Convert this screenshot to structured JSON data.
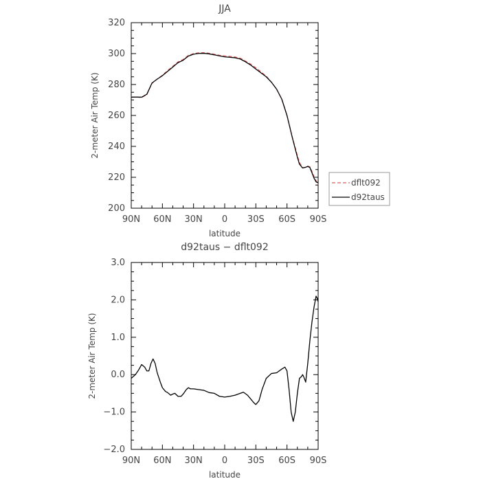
{
  "chart_data": [
    {
      "type": "line",
      "title": "JJA",
      "xlabel": "latitude",
      "ylabel": "2-meter Air Temp (K)",
      "xlim": [
        90,
        -90
      ],
      "ylim": [
        200,
        320
      ],
      "x_ticks": [
        90,
        60,
        30,
        0,
        -30,
        -60,
        -90
      ],
      "x_tick_labels": [
        "90N",
        "60N",
        "30N",
        "0",
        "30S",
        "60S",
        "90S"
      ],
      "y_ticks": [
        200,
        220,
        240,
        260,
        280,
        300,
        320
      ],
      "y_tick_labels": [
        "200",
        "220",
        "240",
        "260",
        "280",
        "300",
        "320"
      ],
      "legend_position": "right",
      "series": [
        {
          "name": "dflt092",
          "color": "#e05a5a",
          "dashed": true,
          "x": [
            90,
            85,
            80,
            75,
            70,
            65,
            60,
            55,
            50,
            45,
            40,
            35,
            30,
            25,
            20,
            15,
            10,
            5,
            0,
            -5,
            -10,
            -15,
            -20,
            -25,
            -30,
            -35,
            -40,
            -45,
            -50,
            -55,
            -60,
            -65,
            -70,
            -72,
            -75,
            -78,
            -80,
            -82,
            -84,
            -86,
            -88,
            -90
          ],
          "y": [
            271.9,
            271.9,
            271.6,
            273.5,
            280.8,
            283.5,
            286.0,
            289.0,
            291.8,
            294.6,
            296.2,
            298.8,
            300.0,
            300.5,
            300.6,
            300.2,
            299.6,
            298.9,
            298.5,
            298.2,
            297.8,
            297.0,
            295.2,
            293.2,
            290.8,
            288.2,
            285.4,
            281.5,
            277.0,
            270.5,
            259.8,
            246.3,
            234.0,
            229.6,
            226.2,
            226.3,
            227.2,
            226.8,
            223.8,
            220.5,
            217.8,
            215.3
          ]
        },
        {
          "name": "d92taus",
          "color": "#000000",
          "dashed": false,
          "x": [
            90,
            85,
            80,
            75,
            70,
            65,
            60,
            55,
            50,
            45,
            40,
            35,
            30,
            25,
            20,
            15,
            10,
            5,
            0,
            -5,
            -10,
            -15,
            -20,
            -25,
            -30,
            -35,
            -40,
            -45,
            -50,
            -55,
            -60,
            -65,
            -70,
            -72,
            -75,
            -78,
            -80,
            -82,
            -84,
            -86,
            -88,
            -90
          ],
          "y": [
            271.8,
            271.9,
            271.8,
            273.7,
            281.0,
            283.5,
            285.7,
            288.5,
            291.3,
            294.1,
            295.7,
            298.4,
            299.6,
            300.1,
            300.2,
            299.8,
            299.2,
            298.5,
            297.9,
            297.6,
            297.3,
            296.5,
            294.7,
            292.6,
            290.0,
            287.5,
            285.0,
            281.5,
            277.0,
            270.5,
            260.0,
            246.0,
            233.0,
            228.5,
            226.0,
            226.5,
            227.0,
            226.4,
            223.0,
            219.5,
            217.0,
            216.5
          ]
        }
      ]
    },
    {
      "type": "line",
      "title": "d92taus − dflt092",
      "xlabel": "latitude",
      "ylabel": "2-meter Air Temp (K)",
      "xlim": [
        90,
        -90
      ],
      "ylim": [
        -2.0,
        3.0
      ],
      "x_ticks": [
        90,
        60,
        30,
        0,
        -30,
        -60,
        -90
      ],
      "x_tick_labels": [
        "90N",
        "60N",
        "30N",
        "0",
        "30S",
        "60S",
        "90S"
      ],
      "y_ticks": [
        -2.0,
        -1.0,
        0.0,
        1.0,
        2.0,
        3.0
      ],
      "y_tick_labels": [
        "−2.0",
        "−1.0",
        "0.0",
        "1.0",
        "2.0",
        "3.0"
      ],
      "series": [
        {
          "color": "#000000",
          "x": [
            90,
            86,
            83,
            80,
            77,
            75,
            73,
            71,
            69,
            67,
            65,
            62,
            60,
            57,
            55,
            52,
            50,
            48,
            45,
            42,
            40,
            37,
            35,
            33,
            30,
            25,
            20,
            15,
            10,
            5,
            0,
            -5,
            -10,
            -15,
            -18,
            -22,
            -25,
            -28,
            -30,
            -33,
            -36,
            -40,
            -45,
            -50,
            -55,
            -58,
            -60,
            -62,
            -64,
            -66,
            -68,
            -70,
            -72,
            -74,
            -75,
            -76,
            -78,
            -80,
            -82,
            -84,
            -86,
            -88,
            -89,
            -90
          ],
          "y": [
            -0.1,
            0.0,
            0.12,
            0.27,
            0.2,
            0.1,
            0.1,
            0.3,
            0.42,
            0.3,
            0.05,
            -0.2,
            -0.35,
            -0.45,
            -0.48,
            -0.55,
            -0.52,
            -0.5,
            -0.58,
            -0.58,
            -0.52,
            -0.4,
            -0.35,
            -0.38,
            -0.38,
            -0.4,
            -0.42,
            -0.48,
            -0.5,
            -0.58,
            -0.6,
            -0.58,
            -0.55,
            -0.5,
            -0.47,
            -0.55,
            -0.65,
            -0.75,
            -0.8,
            -0.7,
            -0.4,
            -0.1,
            0.03,
            0.05,
            0.15,
            0.2,
            0.1,
            -0.4,
            -1.0,
            -1.25,
            -1.0,
            -0.5,
            -0.1,
            -0.05,
            0.0,
            -0.05,
            -0.2,
            0.3,
            0.9,
            1.4,
            1.8,
            2.1,
            2.05,
            1.95
          ]
        }
      ]
    }
  ]
}
